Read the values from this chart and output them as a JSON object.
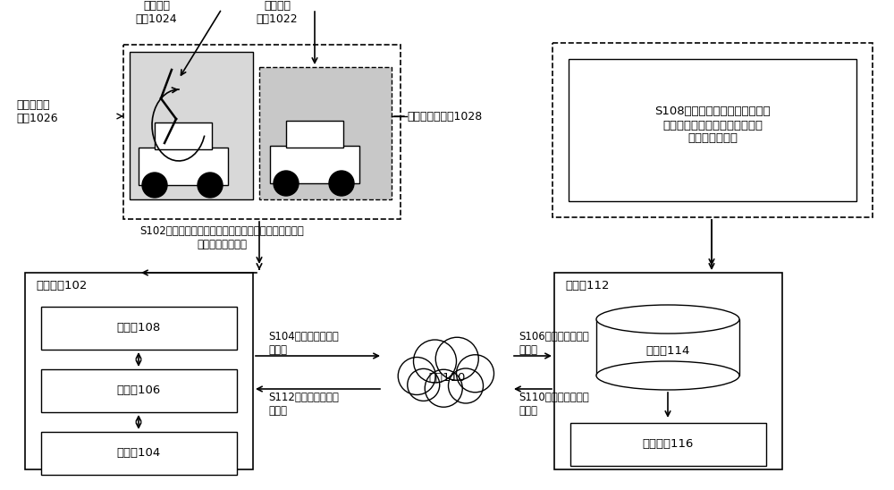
{
  "bg_color": "#ffffff",
  "annotations": {
    "label_attack_op": "目标攻击\n操作1024",
    "label_virtual_traffic": "虚拟交通\n道具1022",
    "label_first_attacked": "第一被攻击\n动画1026",
    "label_second_attacked": "第二被攻击动画1028",
    "label_s102": "S102，获取目标攻击操作，以及第一当前生命值，并播\n放第一被攻击动画",
    "label_s104": "S104，发送第一当前\n生命值",
    "label_s106": "S106，发送第一当前\n生命值",
    "label_s108": "S108，在第一当前生命值与第二\n当前生命值不同的情况下，生成\n第二被攻击动画",
    "label_s110": "S110，发送第二被攻\n击动画",
    "label_s112": "S112，发送第二被攻\n击动画",
    "label_user_device": "用户设备102",
    "label_display": "显示器108",
    "label_processor": "处理器106",
    "label_storage": "存储器104",
    "label_network": "网络110",
    "label_server": "服务器112",
    "label_database": "数据库114",
    "label_engine": "处理引擎116"
  }
}
